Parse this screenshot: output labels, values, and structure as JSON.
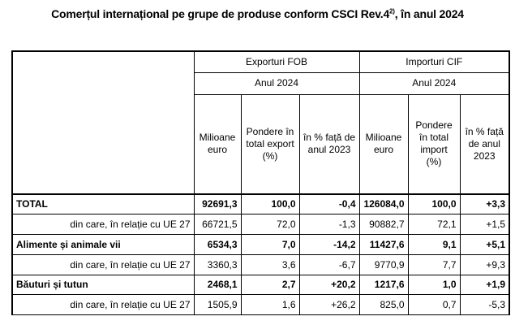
{
  "title": "Comerțul internațional pe grupe de produse conform CSCI Rev.4",
  "title_footnote": "2)",
  "title_suffix": ", în anul 2024",
  "header": {
    "corner": "",
    "group_export": "Exporturi FOB",
    "group_import": "Importuri CIF",
    "year_export": "Anul 2024",
    "year_import": "Anul 2024",
    "col_export_value": "Milioane euro",
    "col_export_share": "Pondere în total export (%)",
    "col_export_change": "în % față de anul 2023",
    "col_import_value": "Milioane euro",
    "col_import_share": "Pondere în total import (%)",
    "col_import_change": "în % față de anul 2023"
  },
  "rows": [
    {
      "label": "TOTAL",
      "ev": "92691,3",
      "es": "100,0",
      "ec": "-0,4",
      "iv": "126084,0",
      "is": "100,0",
      "ic": "+3,3"
    },
    {
      "label": "din care, în relație cu UE 27",
      "ev": "66721,5",
      "es": "72,0",
      "ec": "-1,3",
      "iv": "90882,7",
      "is": "72,1",
      "ic": "+1,5"
    },
    {
      "label": "Alimente și animale vii",
      "ev": "6534,3",
      "es": "7,0",
      "ec": "-14,2",
      "iv": "11427,6",
      "is": "9,1",
      "ic": "+5,1"
    },
    {
      "label": "din care, în relație cu UE 27",
      "ev": "3360,3",
      "es": "3,6",
      "ec": "-6,7",
      "iv": "9770,9",
      "is": "7,7",
      "ic": "+9,3"
    },
    {
      "label": "Băuturi și tutun",
      "ev": "2468,1",
      "es": "2,7",
      "ec": "+20,2",
      "iv": "1217,6",
      "is": "1,0",
      "ic": "+1,9"
    },
    {
      "label": "din care, în relație cu UE 27",
      "ev": "1505,9",
      "es": "1,6",
      "ec": "+26,2",
      "iv": "825,0",
      "is": "0,7",
      "ic": "-5,3"
    }
  ]
}
